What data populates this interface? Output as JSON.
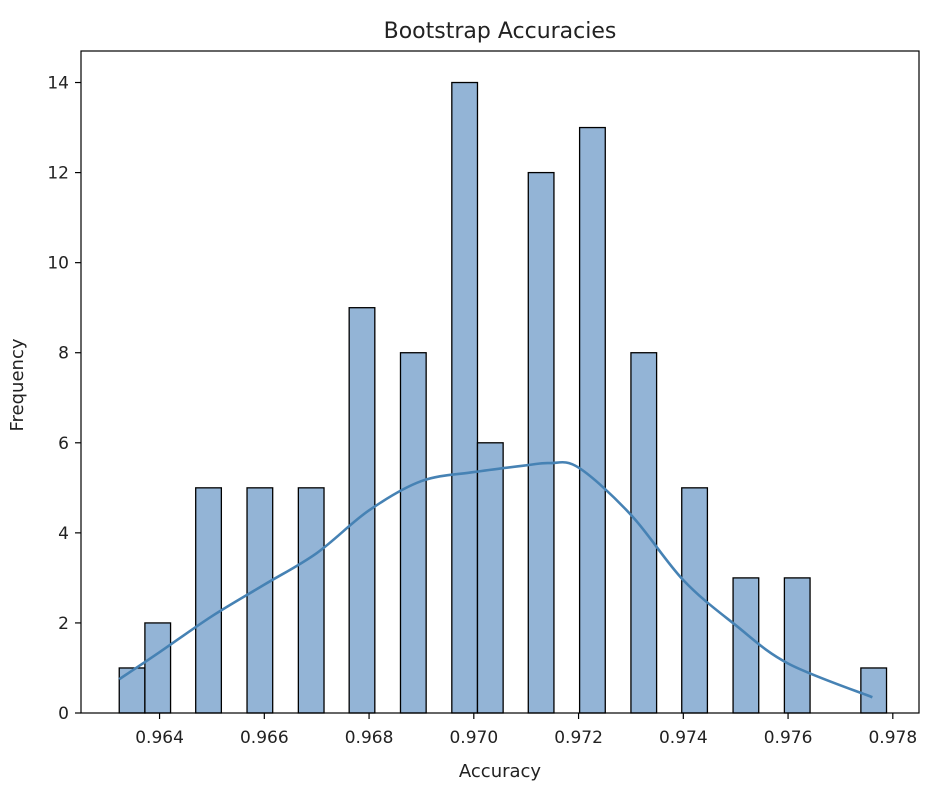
{
  "chart_data": {
    "type": "bar",
    "title": "Bootstrap Accuracies",
    "xlabel": "Accuracy",
    "ylabel": "Frequency",
    "xlim": [
      0.9625,
      0.9785
    ],
    "ylim": [
      0,
      14.7
    ],
    "grid": false,
    "bins": [
      {
        "left": 0.96323,
        "right": 0.96372,
        "value": 1
      },
      {
        "left": 0.96372,
        "right": 0.96421,
        "value": 2
      },
      {
        "left": 0.96469,
        "right": 0.96518,
        "value": 5
      },
      {
        "left": 0.96567,
        "right": 0.96616,
        "value": 5
      },
      {
        "left": 0.96665,
        "right": 0.96714,
        "value": 5
      },
      {
        "left": 0.96762,
        "right": 0.96811,
        "value": 9
      },
      {
        "left": 0.9686,
        "right": 0.96909,
        "value": 8
      },
      {
        "left": 0.96958,
        "right": 0.97007,
        "value": 14
      },
      {
        "left": 0.97007,
        "right": 0.97056,
        "value": 6
      },
      {
        "left": 0.97104,
        "right": 0.97153,
        "value": 12
      },
      {
        "left": 0.97202,
        "right": 0.97251,
        "value": 13
      },
      {
        "left": 0.973,
        "right": 0.97349,
        "value": 8
      },
      {
        "left": 0.97397,
        "right": 0.97446,
        "value": 5
      },
      {
        "left": 0.97495,
        "right": 0.97544,
        "value": 3
      },
      {
        "left": 0.97593,
        "right": 0.97642,
        "value": 3
      },
      {
        "left": 0.97739,
        "right": 0.97788,
        "value": 1
      }
    ],
    "kde": {
      "x": [
        0.96323,
        0.964,
        0.965,
        0.966,
        0.967,
        0.968,
        0.969,
        0.97,
        0.971,
        0.97145,
        0.972,
        0.973,
        0.974,
        0.975,
        0.976,
        0.97761
      ],
      "y": [
        0.75,
        1.35,
        2.15,
        2.85,
        3.55,
        4.5,
        5.15,
        5.35,
        5.5,
        5.55,
        5.45,
        4.4,
        2.95,
        1.95,
        1.1,
        0.35
      ]
    },
    "xticks": [
      "0.964",
      "0.966",
      "0.968",
      "0.970",
      "0.972",
      "0.974",
      "0.976",
      "0.978"
    ],
    "yticks": [
      "0",
      "2",
      "4",
      "6",
      "8",
      "10",
      "12",
      "14"
    ],
    "colors": {
      "bar_fill": "#93b4d6",
      "bar_edge": "#000000",
      "kde_line": "#4682b4"
    }
  }
}
